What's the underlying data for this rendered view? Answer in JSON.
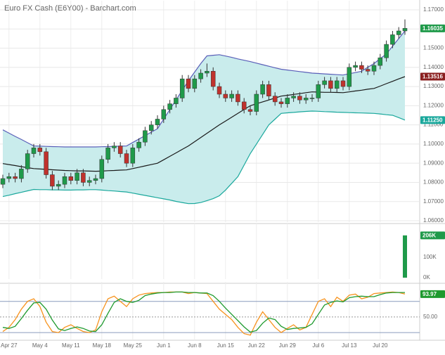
{
  "chart_data": [
    {
      "type": "candlestick",
      "title": "Euro FX Cash (E6Y00) - Barchart.com",
      "categories": [
        null,
        "Apr 27",
        null,
        null,
        null,
        null,
        "May 4",
        null,
        null,
        null,
        null,
        "May 11",
        null,
        null,
        null,
        null,
        "May 18",
        null,
        null,
        null,
        null,
        "May 25",
        null,
        null,
        null,
        null,
        "Jun 1",
        null,
        null,
        null,
        null,
        "Jun 8",
        null,
        null,
        null,
        null,
        "Jun 15",
        null,
        null,
        null,
        null,
        "Jun 22",
        null,
        null,
        null,
        null,
        "Jun 29",
        null,
        null,
        null,
        null,
        "Jul 6",
        null,
        null,
        null,
        null,
        "Jul 13",
        null,
        null,
        null,
        null,
        "Jul 20",
        null,
        null,
        null,
        null
      ],
      "open": [
        1.079,
        1.082,
        1.083,
        1.082,
        1.087,
        1.095,
        1.098,
        1.096,
        1.084,
        1.078,
        1.079,
        1.083,
        1.081,
        1.085,
        1.08,
        1.081,
        1.082,
        1.092,
        1.098,
        1.099,
        1.095,
        1.09,
        1.098,
        1.101,
        1.107,
        1.11,
        1.113,
        1.118,
        1.121,
        1.124,
        1.134,
        1.129,
        1.134,
        1.137,
        1.138,
        1.13,
        1.126,
        1.124,
        1.126,
        1.122,
        1.118,
        1.117,
        1.126,
        1.131,
        1.125,
        1.122,
        1.121,
        1.124,
        1.125,
        1.123,
        1.124,
        1.124,
        1.131,
        1.133,
        1.129,
        1.133,
        1.13,
        1.14,
        1.141,
        1.139,
        1.138,
        1.141,
        1.145,
        1.152,
        1.157,
        1.159
      ],
      "high": [
        1.084,
        1.085,
        1.085,
        1.089,
        1.097,
        1.1,
        1.1,
        1.098,
        1.086,
        1.081,
        1.085,
        1.085,
        1.087,
        1.087,
        1.083,
        1.084,
        1.094,
        1.1,
        1.101,
        1.101,
        1.097,
        1.1,
        1.103,
        1.109,
        1.112,
        1.115,
        1.12,
        1.123,
        1.126,
        1.136,
        1.136,
        1.136,
        1.139,
        1.142,
        1.14,
        1.132,
        1.128,
        1.128,
        1.128,
        1.124,
        1.12,
        1.128,
        1.133,
        1.133,
        1.127,
        1.124,
        1.126,
        1.127,
        1.127,
        1.126,
        1.126,
        1.133,
        1.135,
        1.135,
        1.135,
        1.135,
        1.142,
        1.143,
        1.143,
        1.141,
        1.143,
        1.147,
        1.154,
        1.159,
        1.161,
        1.165
      ],
      "low": [
        1.077,
        1.08,
        1.08,
        1.08,
        1.085,
        1.093,
        1.094,
        1.082,
        1.076,
        1.076,
        1.077,
        1.079,
        1.079,
        1.078,
        1.078,
        1.079,
        1.08,
        1.09,
        1.096,
        1.093,
        1.088,
        1.088,
        1.096,
        1.099,
        1.105,
        1.108,
        1.111,
        1.116,
        1.119,
        1.122,
        1.127,
        1.127,
        1.132,
        1.135,
        1.128,
        1.124,
        1.122,
        1.122,
        1.12,
        1.116,
        1.115,
        1.115,
        1.124,
        1.123,
        1.12,
        1.119,
        1.119,
        1.122,
        1.121,
        1.121,
        1.122,
        1.122,
        1.129,
        1.127,
        1.127,
        1.128,
        1.128,
        1.138,
        1.137,
        1.136,
        1.136,
        1.139,
        1.143,
        1.15,
        1.155,
        1.157
      ],
      "close": [
        1.082,
        1.083,
        1.082,
        1.087,
        1.095,
        1.098,
        1.096,
        1.084,
        1.078,
        1.079,
        1.083,
        1.081,
        1.085,
        1.08,
        1.081,
        1.082,
        1.092,
        1.098,
        1.099,
        1.095,
        1.09,
        1.098,
        1.101,
        1.107,
        1.11,
        1.113,
        1.118,
        1.121,
        1.124,
        1.134,
        1.129,
        1.134,
        1.137,
        1.138,
        1.13,
        1.126,
        1.124,
        1.126,
        1.122,
        1.118,
        1.117,
        1.126,
        1.131,
        1.125,
        1.122,
        1.121,
        1.124,
        1.125,
        1.123,
        1.124,
        1.124,
        1.131,
        1.133,
        1.129,
        1.133,
        1.13,
        1.14,
        1.141,
        1.139,
        1.138,
        1.141,
        1.145,
        1.152,
        1.157,
        1.159,
        1.16035
      ],
      "up_color": "#1f9a4a",
      "down_color": "#c0322d",
      "band_fill": "#c9ecec",
      "bands": {
        "upper": {
          "color": "#5a5fb8",
          "values": [
            1.1074,
            1.1057,
            1.104,
            1.1024,
            1.1007,
            1.099,
            1.0989,
            1.0988,
            1.0987,
            1.0986,
            1.0985,
            1.0985,
            1.0985,
            1.0985,
            1.0985,
            1.0985,
            1.0986,
            1.0987,
            1.0988,
            1.0989,
            1.099,
            1.1008,
            1.1026,
            1.1044,
            1.1062,
            1.108,
            1.113,
            1.118,
            1.123,
            1.128,
            1.133,
            1.1375,
            1.142,
            1.146,
            1.1463,
            1.1466,
            1.1459,
            1.1452,
            1.1444,
            1.1437,
            1.143,
            1.1422,
            1.1414,
            1.1406,
            1.1398,
            1.139,
            1.1386,
            1.1382,
            1.1378,
            1.1374,
            1.137,
            1.1368,
            1.1366,
            1.1364,
            1.1362,
            1.136,
            1.1367,
            1.1373,
            1.138,
            1.14,
            1.142,
            1.1445,
            1.147,
            1.151,
            1.155,
            1.159
          ]
        },
        "middle": {
          "color": "#1a1a1a",
          "badge_color": "#8a1f1f",
          "values": [
            1.0898,
            1.0893,
            1.0888,
            1.0882,
            1.0877,
            1.0872,
            1.087,
            1.0868,
            1.0866,
            1.0864,
            1.0862,
            1.0861,
            1.086,
            1.086,
            1.0859,
            1.0858,
            1.0859,
            1.0861,
            1.0862,
            1.0864,
            1.0865,
            1.0872,
            1.0879,
            1.0886,
            1.0893,
            1.09,
            1.0918,
            1.0936,
            1.0954,
            1.0972,
            1.099,
            1.1012,
            1.1034,
            1.1056,
            1.1078,
            1.11,
            1.112,
            1.114,
            1.116,
            1.118,
            1.12,
            1.121,
            1.122,
            1.123,
            1.124,
            1.125,
            1.1254,
            1.1259,
            1.1263,
            1.1268,
            1.1272,
            1.1271,
            1.127,
            1.127,
            1.1269,
            1.1268,
            1.1272,
            1.1277,
            1.1281,
            1.1286,
            1.129,
            1.1302,
            1.1315,
            1.1327,
            1.134,
            1.13516
          ]
        },
        "lower": {
          "color": "#1aa89c",
          "values": [
            1.0726,
            1.0733,
            1.0741,
            1.0748,
            1.0756,
            1.0763,
            1.0762,
            1.0762,
            1.0761,
            1.0761,
            1.076,
            1.076,
            1.0761,
            1.0761,
            1.0762,
            1.0762,
            1.076,
            1.0757,
            1.0755,
            1.0752,
            1.075,
            1.0744,
            1.0738,
            1.0732,
            1.0726,
            1.072,
            1.0714,
            1.0708,
            1.0701,
            1.0695,
            1.0689,
            1.069,
            1.0695,
            1.0705,
            1.0715,
            1.073,
            1.076,
            1.0795,
            1.083,
            1.089,
            1.095,
            1.1,
            1.105,
            1.11,
            1.113,
            1.116,
            1.1163,
            1.1165,
            1.1168,
            1.117,
            1.1172,
            1.1171,
            1.1169,
            1.1168,
            1.1166,
            1.1165,
            1.1164,
            1.1163,
            1.1162,
            1.1161,
            1.116,
            1.1157,
            1.1153,
            1.115,
            1.1138,
            1.1125
          ],
          "value_labels": [
            null,
            null,
            null,
            null,
            null,
            null,
            null,
            null,
            null,
            null,
            null,
            null,
            null,
            null,
            null,
            null,
            null,
            null,
            null,
            null,
            null,
            null,
            null,
            null,
            null,
            null,
            null,
            null,
            null,
            null,
            null,
            null,
            null,
            null,
            null,
            null,
            null,
            null,
            null,
            null,
            null,
            null,
            null,
            null,
            null,
            null,
            null,
            null,
            null,
            null,
            null,
            null,
            null,
            null,
            null,
            null,
            null,
            null,
            null,
            null,
            null,
            null,
            null,
            null,
            null,
            "1.11250"
          ]
        }
      },
      "ylim": [
        1.06,
        1.1733
      ],
      "yticks": [
        {
          "value": 1.06,
          "label": "1.06000"
        },
        {
          "value": 1.07,
          "label": "1.07000"
        },
        {
          "value": 1.08,
          "label": "1.08000"
        },
        {
          "value": 1.09,
          "label": "1.09000"
        },
        {
          "value": 1.1,
          "label": "1.10000"
        },
        {
          "value": 1.11,
          "label": "1.11000"
        },
        {
          "value": 1.12,
          "label": "1.12000"
        },
        {
          "value": 1.13,
          "label": "1.13000"
        },
        {
          "value": 1.14,
          "label": "1.14000"
        },
        {
          "value": 1.15,
          "label": "1.15000"
        },
        {
          "value": 1.16,
          "label": "1.16000"
        },
        {
          "value": 1.17,
          "label": "1.17000"
        }
      ],
      "grid": true
    },
    {
      "type": "bar",
      "color": "#1f9a4a",
      "values": [
        null,
        null,
        null,
        null,
        null,
        null,
        null,
        null,
        null,
        null,
        null,
        null,
        null,
        null,
        null,
        null,
        null,
        null,
        null,
        null,
        null,
        null,
        null,
        null,
        null,
        null,
        null,
        null,
        null,
        null,
        null,
        null,
        null,
        null,
        null,
        null,
        null,
        null,
        null,
        null,
        null,
        null,
        null,
        null,
        null,
        null,
        null,
        null,
        null,
        null,
        null,
        null,
        null,
        null,
        null,
        null,
        null,
        null,
        null,
        null,
        null,
        null,
        null,
        null,
        null,
        206000
      ],
      "value_labels": [
        null,
        null,
        null,
        null,
        null,
        null,
        null,
        null,
        null,
        null,
        null,
        null,
        null,
        null,
        null,
        null,
        null,
        null,
        null,
        null,
        null,
        null,
        null,
        null,
        null,
        null,
        null,
        null,
        null,
        null,
        null,
        null,
        null,
        null,
        null,
        null,
        null,
        null,
        null,
        null,
        null,
        null,
        null,
        null,
        null,
        null,
        null,
        null,
        null,
        null,
        null,
        null,
        null,
        null,
        null,
        null,
        null,
        null,
        null,
        null,
        null,
        null,
        null,
        null,
        null,
        "206K"
      ],
      "ylim": [
        0,
        250000
      ],
      "yticks": [
        {
          "value": 0,
          "label": "0K"
        },
        {
          "value": 100000,
          "label": "100K"
        }
      ]
    },
    {
      "type": "line",
      "series": [
        {
          "color": "#f7931e",
          "values": [
            22,
            30,
            45,
            65,
            80,
            85,
            70,
            40,
            22,
            20,
            30,
            35,
            28,
            22,
            20,
            25,
            60,
            85,
            90,
            80,
            70,
            85,
            92,
            95,
            96,
            97,
            97,
            98,
            98,
            98,
            95,
            97,
            96,
            95,
            80,
            65,
            55,
            45,
            30,
            18,
            15,
            40,
            60,
            45,
            30,
            20,
            28,
            35,
            25,
            30,
            55,
            80,
            85,
            70,
            88,
            80,
            92,
            94,
            85,
            88,
            95,
            96,
            97,
            98,
            97,
            93.97
          ]
        },
        {
          "color": "#1e9a2e",
          "values": [
            30,
            28,
            32,
            47,
            63,
            77,
            78,
            65,
            44,
            27,
            24,
            28,
            31,
            28,
            23,
            22,
            35,
            57,
            78,
            85,
            80,
            78,
            82,
            91,
            94,
            96,
            97,
            97,
            98,
            98,
            97,
            97,
            96,
            96,
            91,
            80,
            67,
            55,
            43,
            31,
            21,
            24,
            38,
            48,
            45,
            32,
            26,
            28,
            29,
            30,
            37,
            55,
            73,
            78,
            81,
            79,
            87,
            89,
            90,
            89,
            89,
            93,
            96,
            97,
            97,
            97
          ]
        }
      ],
      "reference_lines": [
        20,
        80
      ],
      "reference_color": "#8a9bbd",
      "ylim": [
        8,
        112
      ],
      "yticks": [
        {
          "value": 50,
          "label": "50.00"
        }
      ]
    }
  ]
}
